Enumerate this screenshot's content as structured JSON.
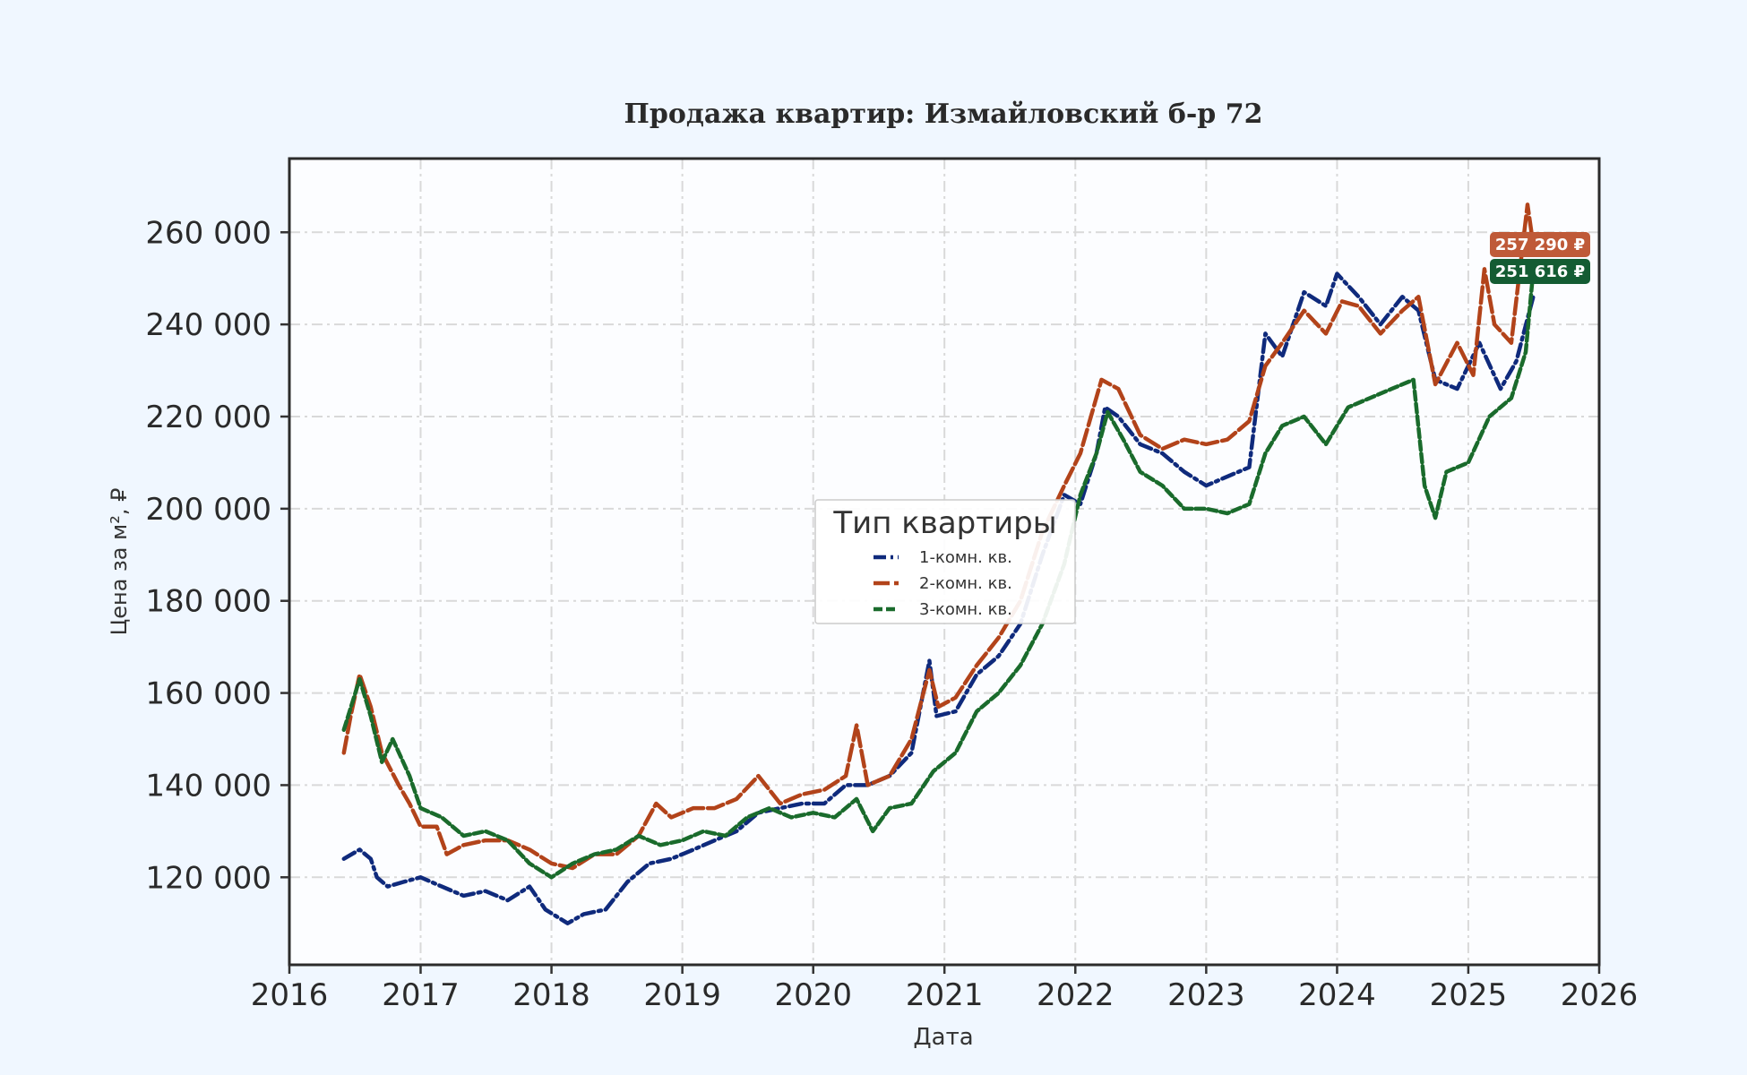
{
  "colors": {
    "background": "#f0f7ff",
    "plot_background": "#fcfdff",
    "one_room": "#0f2a7c",
    "two_room": "#b2431a",
    "three_room": "#1a6b2c",
    "grid": "#d9d9d9",
    "axis": "#333333"
  },
  "chart_data": {
    "type": "line",
    "title": "Продажа квартир: Измайловский б-р 72",
    "xlabel": "Дата",
    "ylabel": "Цена за м², ₽",
    "x_ticks": [
      "2016",
      "2017",
      "2018",
      "2019",
      "2020",
      "2021",
      "2022",
      "2023",
      "2024",
      "2025",
      "2026"
    ],
    "y_ticks": [
      "120 000",
      "140 000",
      "160 000",
      "180 000",
      "200 000",
      "220 000",
      "240 000",
      "260 000"
    ],
    "xlim": [
      "2016-01-01",
      "2026-01-01"
    ],
    "ylim": [
      101000,
      276000
    ],
    "grid": true,
    "legend": {
      "title": "Тип квартиры",
      "placement": "center"
    },
    "end_labels": [
      {
        "series": "2-комн. кв.",
        "text": "257 290 ₽"
      },
      {
        "series": "3-комн. кв.",
        "text": "251 616 ₽"
      }
    ],
    "series": [
      {
        "name": "1-комн. кв.",
        "color": "#0f2a7c",
        "style": "dashdot",
        "points": [
          [
            "2016-06-01",
            124000
          ],
          [
            "2016-07-15",
            126000
          ],
          [
            "2016-08-15",
            124000
          ],
          [
            "2016-09-01",
            120000
          ],
          [
            "2016-10-01",
            118000
          ],
          [
            "2016-11-15",
            119000
          ],
          [
            "2017-01-01",
            120000
          ],
          [
            "2017-03-01",
            118000
          ],
          [
            "2017-05-01",
            116000
          ],
          [
            "2017-07-01",
            117000
          ],
          [
            "2017-09-01",
            115000
          ],
          [
            "2017-11-01",
            118000
          ],
          [
            "2017-12-15",
            113000
          ],
          [
            "2018-02-15",
            110000
          ],
          [
            "2018-04-01",
            112000
          ],
          [
            "2018-06-01",
            113000
          ],
          [
            "2018-08-01",
            119000
          ],
          [
            "2018-10-01",
            123000
          ],
          [
            "2018-12-01",
            124000
          ],
          [
            "2019-02-01",
            126000
          ],
          [
            "2019-04-01",
            128000
          ],
          [
            "2019-06-01",
            130000
          ],
          [
            "2019-08-01",
            134000
          ],
          [
            "2019-10-01",
            135000
          ],
          [
            "2019-12-01",
            136000
          ],
          [
            "2020-02-01",
            136000
          ],
          [
            "2020-04-01",
            140000
          ],
          [
            "2020-06-01",
            140000
          ],
          [
            "2020-08-01",
            142000
          ],
          [
            "2020-10-01",
            147000
          ],
          [
            "2020-11-20",
            167000
          ],
          [
            "2020-12-10",
            155000
          ],
          [
            "2021-02-01",
            156000
          ],
          [
            "2021-04-01",
            164000
          ],
          [
            "2021-06-01",
            168000
          ],
          [
            "2021-08-01",
            175000
          ],
          [
            "2021-10-01",
            190000
          ],
          [
            "2021-12-01",
            203000
          ],
          [
            "2022-01-15",
            201000
          ],
          [
            "2022-03-01",
            212000
          ],
          [
            "2022-03-25",
            222000
          ],
          [
            "2022-05-01",
            220000
          ],
          [
            "2022-07-01",
            214000
          ],
          [
            "2022-09-01",
            212000
          ],
          [
            "2022-11-01",
            208000
          ],
          [
            "2023-01-01",
            205000
          ],
          [
            "2023-03-01",
            207000
          ],
          [
            "2023-05-01",
            209000
          ],
          [
            "2023-06-15",
            238000
          ],
          [
            "2023-08-01",
            233000
          ],
          [
            "2023-10-01",
            247000
          ],
          [
            "2023-12-01",
            244000
          ],
          [
            "2024-01-01",
            251000
          ],
          [
            "2024-03-01",
            246000
          ],
          [
            "2024-05-01",
            240000
          ],
          [
            "2024-07-01",
            246000
          ],
          [
            "2024-08-15",
            243000
          ],
          [
            "2024-10-01",
            228000
          ],
          [
            "2024-12-01",
            226000
          ],
          [
            "2025-02-01",
            236000
          ],
          [
            "2025-04-01",
            226000
          ],
          [
            "2025-05-15",
            232000
          ],
          [
            "2025-07-01",
            246000
          ]
        ]
      },
      {
        "name": "2-комн. кв.",
        "color": "#b2431a",
        "style": "dashed",
        "points": [
          [
            "2016-06-01",
            147000
          ],
          [
            "2016-06-20",
            155000
          ],
          [
            "2016-07-15",
            164000
          ],
          [
            "2016-08-15",
            157000
          ],
          [
            "2016-09-15",
            147000
          ],
          [
            "2016-11-01",
            140000
          ],
          [
            "2016-12-01",
            136000
          ],
          [
            "2017-01-01",
            131000
          ],
          [
            "2017-02-15",
            131000
          ],
          [
            "2017-03-15",
            125000
          ],
          [
            "2017-05-01",
            127000
          ],
          [
            "2017-07-01",
            128000
          ],
          [
            "2017-09-01",
            128000
          ],
          [
            "2017-11-01",
            126000
          ],
          [
            "2018-01-01",
            123000
          ],
          [
            "2018-03-01",
            122000
          ],
          [
            "2018-05-01",
            125000
          ],
          [
            "2018-07-01",
            125000
          ],
          [
            "2018-09-01",
            129000
          ],
          [
            "2018-10-20",
            136000
          ],
          [
            "2018-12-01",
            133000
          ],
          [
            "2019-02-01",
            135000
          ],
          [
            "2019-04-01",
            135000
          ],
          [
            "2019-06-01",
            137000
          ],
          [
            "2019-08-01",
            142000
          ],
          [
            "2019-10-01",
            136000
          ],
          [
            "2019-12-01",
            138000
          ],
          [
            "2020-02-01",
            139000
          ],
          [
            "2020-04-01",
            142000
          ],
          [
            "2020-05-01",
            153000
          ],
          [
            "2020-06-01",
            140000
          ],
          [
            "2020-08-01",
            142000
          ],
          [
            "2020-10-01",
            150000
          ],
          [
            "2020-11-20",
            165000
          ],
          [
            "2020-12-15",
            157000
          ],
          [
            "2021-02-01",
            159000
          ],
          [
            "2021-04-01",
            166000
          ],
          [
            "2021-06-01",
            172000
          ],
          [
            "2021-08-01",
            180000
          ],
          [
            "2021-10-01",
            195000
          ],
          [
            "2021-12-01",
            205000
          ],
          [
            "2022-01-15",
            212000
          ],
          [
            "2022-03-15",
            228000
          ],
          [
            "2022-05-01",
            226000
          ],
          [
            "2022-07-01",
            216000
          ],
          [
            "2022-09-01",
            213000
          ],
          [
            "2022-11-01",
            215000
          ],
          [
            "2023-01-01",
            214000
          ],
          [
            "2023-03-01",
            215000
          ],
          [
            "2023-05-01",
            219000
          ],
          [
            "2023-06-15",
            231000
          ],
          [
            "2023-08-01",
            236000
          ],
          [
            "2023-10-01",
            243000
          ],
          [
            "2023-12-01",
            238000
          ],
          [
            "2024-01-15",
            245000
          ],
          [
            "2024-03-01",
            244000
          ],
          [
            "2024-05-01",
            238000
          ],
          [
            "2024-07-01",
            243000
          ],
          [
            "2024-08-15",
            246000
          ],
          [
            "2024-10-01",
            227000
          ],
          [
            "2024-12-01",
            236000
          ],
          [
            "2025-01-15",
            229000
          ],
          [
            "2025-02-15",
            252000
          ],
          [
            "2025-03-15",
            240000
          ],
          [
            "2025-05-01",
            236000
          ],
          [
            "2025-06-15",
            266000
          ],
          [
            "2025-07-01",
            257290
          ]
        ]
      },
      {
        "name": "3-комн. кв.",
        "color": "#1a6b2c",
        "style": "dashed-dense",
        "points": [
          [
            "2016-06-01",
            152000
          ],
          [
            "2016-06-25",
            158000
          ],
          [
            "2016-07-15",
            163000
          ],
          [
            "2016-08-15",
            155000
          ],
          [
            "2016-09-15",
            145000
          ],
          [
            "2016-10-15",
            150000
          ],
          [
            "2016-12-01",
            142000
          ],
          [
            "2017-01-01",
            135000
          ],
          [
            "2017-03-01",
            133000
          ],
          [
            "2017-05-01",
            129000
          ],
          [
            "2017-07-01",
            130000
          ],
          [
            "2017-09-01",
            128000
          ],
          [
            "2017-11-01",
            123000
          ],
          [
            "2018-01-01",
            120000
          ],
          [
            "2018-03-01",
            123000
          ],
          [
            "2018-05-01",
            125000
          ],
          [
            "2018-07-01",
            126000
          ],
          [
            "2018-09-01",
            129000
          ],
          [
            "2018-11-01",
            127000
          ],
          [
            "2019-01-01",
            128000
          ],
          [
            "2019-03-01",
            130000
          ],
          [
            "2019-05-01",
            129000
          ],
          [
            "2019-07-01",
            133000
          ],
          [
            "2019-09-01",
            135000
          ],
          [
            "2019-11-01",
            133000
          ],
          [
            "2020-01-01",
            134000
          ],
          [
            "2020-03-01",
            133000
          ],
          [
            "2020-05-01",
            137000
          ],
          [
            "2020-06-15",
            130000
          ],
          [
            "2020-08-01",
            135000
          ],
          [
            "2020-10-01",
            136000
          ],
          [
            "2020-12-01",
            143000
          ],
          [
            "2021-02-01",
            147000
          ],
          [
            "2021-04-01",
            156000
          ],
          [
            "2021-06-01",
            160000
          ],
          [
            "2021-08-01",
            166000
          ],
          [
            "2021-10-01",
            175000
          ],
          [
            "2021-12-01",
            188000
          ],
          [
            "2022-01-15",
            203000
          ],
          [
            "2022-03-01",
            212000
          ],
          [
            "2022-04-01",
            221000
          ],
          [
            "2022-05-15",
            215000
          ],
          [
            "2022-07-01",
            208000
          ],
          [
            "2022-09-01",
            205000
          ],
          [
            "2022-11-01",
            200000
          ],
          [
            "2023-01-01",
            200000
          ],
          [
            "2023-03-01",
            199000
          ],
          [
            "2023-05-01",
            201000
          ],
          [
            "2023-06-15",
            212000
          ],
          [
            "2023-08-01",
            218000
          ],
          [
            "2023-10-01",
            220000
          ],
          [
            "2023-12-01",
            214000
          ],
          [
            "2024-02-01",
            222000
          ],
          [
            "2024-04-01",
            224000
          ],
          [
            "2024-06-01",
            226000
          ],
          [
            "2024-08-01",
            228000
          ],
          [
            "2024-09-01",
            205000
          ],
          [
            "2024-10-01",
            198000
          ],
          [
            "2024-11-01",
            208000
          ],
          [
            "2025-01-01",
            210000
          ],
          [
            "2025-03-01",
            220000
          ],
          [
            "2025-05-01",
            224000
          ],
          [
            "2025-06-10",
            234000
          ],
          [
            "2025-07-01",
            251616
          ]
        ]
      }
    ]
  }
}
